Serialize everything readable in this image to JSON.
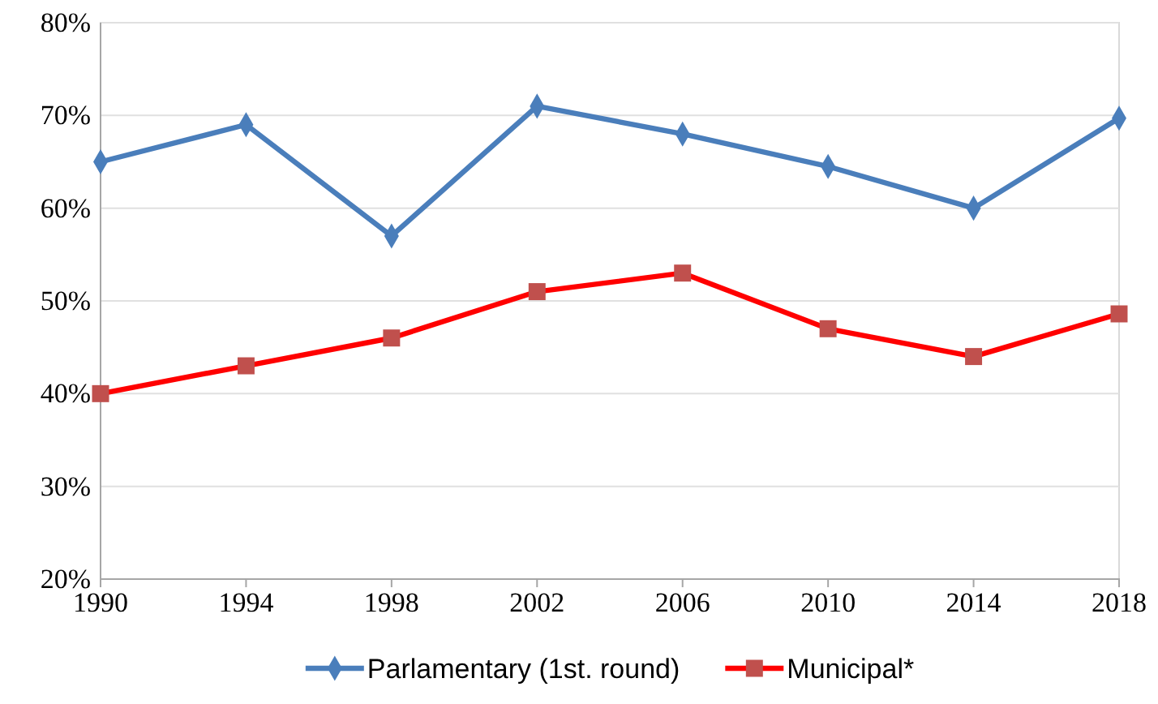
{
  "chart_data": {
    "type": "line",
    "x": [
      1990,
      1994,
      1998,
      2002,
      2006,
      2010,
      2014,
      2018
    ],
    "xlim": [
      1990,
      2018
    ],
    "xticks": [
      1990,
      1994,
      1998,
      2002,
      2006,
      2010,
      2014,
      2018
    ],
    "ylim": [
      20,
      80
    ],
    "yticks": [
      {
        "value": 20,
        "label": "20%"
      },
      {
        "value": 30,
        "label": "30%"
      },
      {
        "value": 40,
        "label": "40%"
      },
      {
        "value": 50,
        "label": "50%"
      },
      {
        "value": 60,
        "label": "60%"
      },
      {
        "value": 70,
        "label": "70%"
      },
      {
        "value": 80,
        "label": "80%"
      }
    ],
    "grid": "y",
    "legend": "bottom",
    "series": [
      {
        "name": "Parlamentary (1st. round)",
        "color": "#4a7ebb",
        "marker": "diamond",
        "values": [
          65,
          69,
          57,
          71,
          68,
          64.5,
          60,
          69.7
        ]
      },
      {
        "name": "Municipal*",
        "color": "#ff0000",
        "marker": "square",
        "values": [
          40,
          43,
          46,
          51,
          53,
          47,
          44,
          48.6
        ]
      }
    ]
  }
}
